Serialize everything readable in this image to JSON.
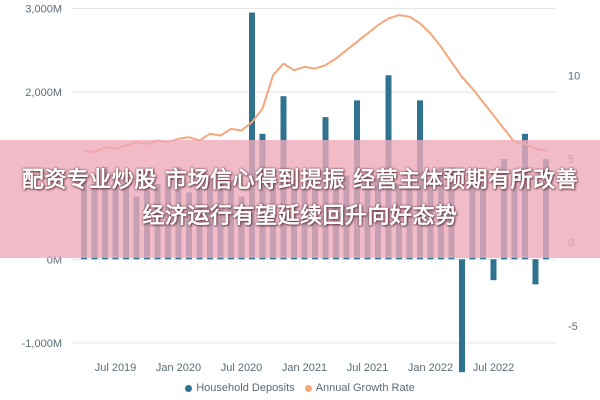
{
  "chart_data": {
    "type": "bar",
    "x_tick_labels": [
      "Jul 2019",
      "Jan 2020",
      "Jul 2020",
      "Jan 2021",
      "Jul 2021",
      "Jan 2022",
      "Jul 2022"
    ],
    "y_left_ticks": [
      "-1,000M",
      "0M",
      "1,000M",
      "2,000M",
      "3,000M"
    ],
    "y_right_ticks": [
      "-5",
      "0",
      "5",
      "10"
    ],
    "ylim_left": [
      -1300,
      3100
    ],
    "ylim_right": [
      -7.5,
      14.5
    ],
    "grid": true,
    "legend_position": "bottom",
    "series": [
      {
        "name": "Household Deposits",
        "type": "bar",
        "axis": "left",
        "color": "#2f7391",
        "values": [
          1000,
          900,
          1100,
          1000,
          950,
          750,
          1050,
          900,
          1000,
          1100,
          800,
          850,
          1000,
          1050,
          950,
          750,
          2950,
          1500,
          900,
          1950,
          950,
          900,
          850,
          1700,
          900,
          1000,
          1900,
          1000,
          950,
          2200,
          900,
          950,
          1900,
          900,
          1100,
          1100,
          -1350,
          1000,
          900,
          -250,
          1200,
          1000,
          1500,
          -300,
          1200
        ]
      },
      {
        "name": "Annual Growth Rate",
        "type": "line",
        "axis": "right",
        "color": "#f4a77c",
        "values": [
          5.5,
          5.4,
          5.7,
          5.6,
          5.8,
          6.0,
          5.9,
          6.1,
          6.0,
          6.2,
          6.3,
          6.1,
          6.5,
          6.4,
          6.8,
          6.7,
          7.2,
          8.0,
          10.0,
          10.7,
          10.3,
          10.5,
          10.4,
          10.6,
          11.0,
          11.5,
          12.0,
          12.5,
          13.0,
          13.4,
          13.6,
          13.5,
          13.1,
          12.5,
          11.7,
          10.8,
          9.9,
          9.2,
          8.4,
          7.6,
          6.8,
          6.0,
          5.9,
          5.6,
          5.5
        ]
      }
    ]
  },
  "colors": {
    "bar": "#2f7391",
    "line": "#f4a77c",
    "grid": "#e2e2e2",
    "banner": "#edaaba"
  },
  "legend": {
    "items": [
      {
        "label": "Household Deposits",
        "color": "#2f7391"
      },
      {
        "label": "Annual Growth Rate",
        "color": "#f4a77c"
      }
    ]
  },
  "overlay": {
    "headline": "配资专业炒股 市场信心得到提振 经营主体预期有所改善 经济运行有望延续回升向好态势"
  }
}
